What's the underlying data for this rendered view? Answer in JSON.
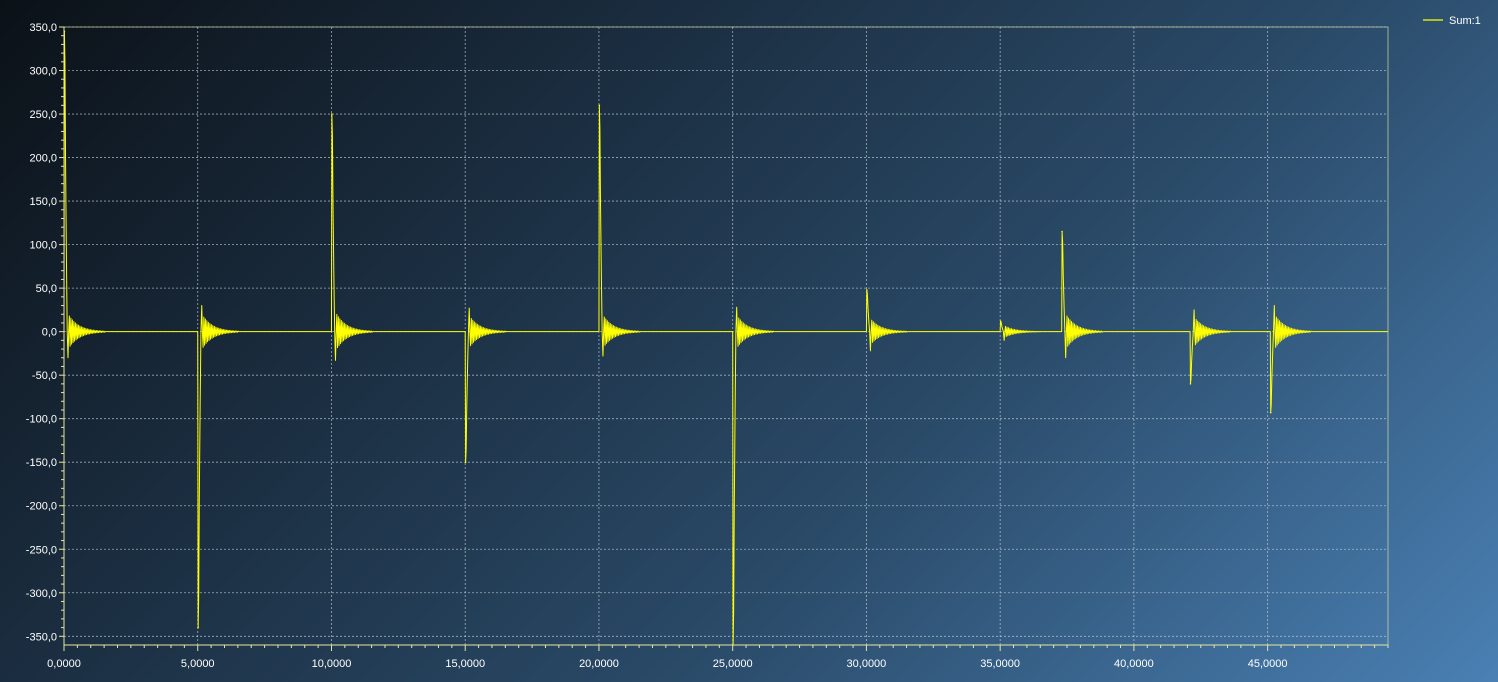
{
  "chart_data": {
    "type": "line",
    "title": "",
    "xlabel": "",
    "ylabel": "",
    "xlim": [
      0,
      49500
    ],
    "ylim": [
      -360,
      350
    ],
    "grid": true,
    "legend_placement": "top-right",
    "colors": {
      "series": "#ffff00",
      "axis": "#e6e6a0",
      "grid": "#c8d4e0",
      "text": "#ffffff"
    },
    "x_ticks": [
      0,
      5000,
      10000,
      15000,
      20000,
      25000,
      30000,
      35000,
      40000,
      45000
    ],
    "x_tick_labels": [
      "0,0000",
      "5,0000",
      "10,0000",
      "15,0000",
      "20,0000",
      "25,0000",
      "30,0000",
      "35,0000",
      "40,0000",
      "45,0000"
    ],
    "y_ticks": [
      350,
      300,
      250,
      200,
      150,
      100,
      50,
      0,
      -50,
      -100,
      -150,
      -200,
      -250,
      -300,
      -350
    ],
    "y_tick_labels": [
      "350,0",
      "300,0",
      "250,0",
      "200,0",
      "150,0",
      "100,0",
      "50,0",
      "0,0",
      "-50,0",
      "-100,0",
      "-150,0",
      "-200,0",
      "-250,0",
      "-300,0",
      "-350,0"
    ],
    "series": [
      {
        "name": "Sum:1",
        "color": "#ffff00",
        "events": [
          {
            "x": 0,
            "peak": 345,
            "rebound": -30
          },
          {
            "x": 5000,
            "peak": -340,
            "rebound": 30
          },
          {
            "x": 10000,
            "peak": 250,
            "rebound": -33
          },
          {
            "x": 15000,
            "peak": -150,
            "rebound": 27
          },
          {
            "x": 20000,
            "peak": 260,
            "rebound": -28
          },
          {
            "x": 25000,
            "peak": -360,
            "rebound": 28
          },
          {
            "x": 30000,
            "peak": 48,
            "rebound": -22
          },
          {
            "x": 35000,
            "peak": 12,
            "rebound": -10
          },
          {
            "x": 37300,
            "peak": 115,
            "rebound": -30
          },
          {
            "x": 42100,
            "peak": -60,
            "rebound": 25
          },
          {
            "x": 45100,
            "peak": -93,
            "rebound": 30
          }
        ]
      }
    ]
  }
}
